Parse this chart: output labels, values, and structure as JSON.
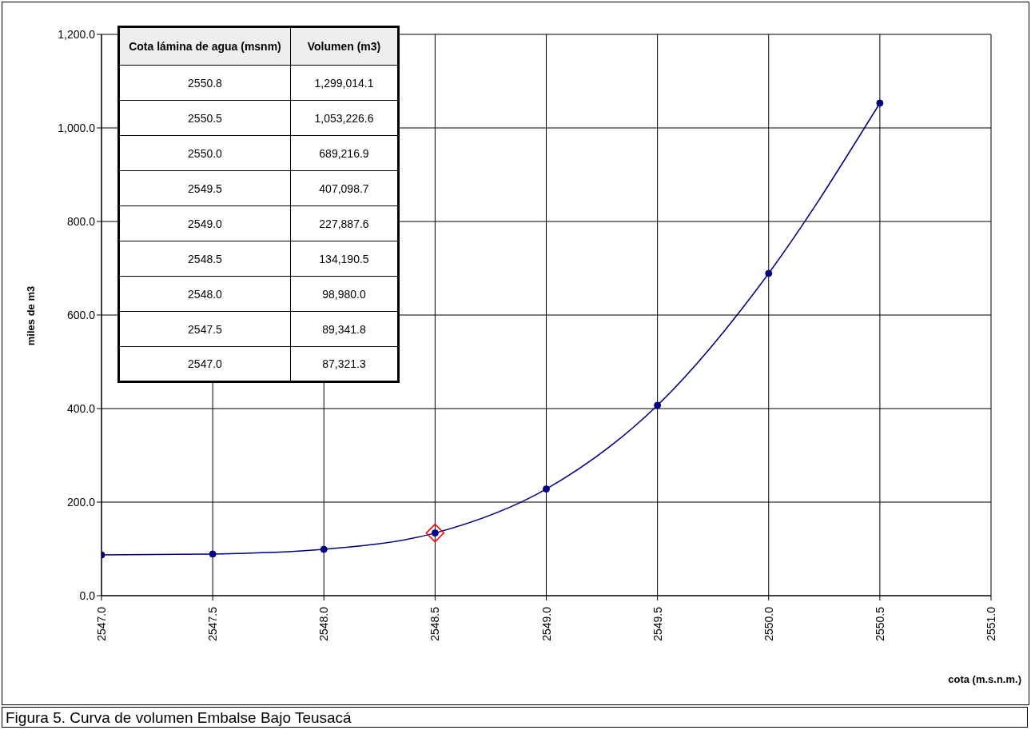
{
  "chart_data": {
    "type": "line",
    "title": "Figura 5. Curva de volumen Embalse Bajo Teusacá",
    "xlabel": "cota (m.s.n.m.)",
    "ylabel": "miles de m3",
    "x": [
      2547.0,
      2547.5,
      2548.0,
      2548.5,
      2549.0,
      2549.5,
      2550.0,
      2550.5
    ],
    "series": [
      {
        "color": "#000080",
        "marker": "circle",
        "values": [
          87,
          89,
          99,
          134,
          228,
          407,
          689,
          1053
        ]
      },
      {
        "type": "scatter",
        "color": "#ff0000",
        "marker": "diamond",
        "x": [
          2548.5
        ],
        "values": [
          134
        ]
      }
    ],
    "xlim": [
      2547,
      2551
    ],
    "xticks": [
      {
        "value": 2547,
        "label": "2547.0"
      },
      {
        "value": 2547.5,
        "label": "2547.5"
      },
      {
        "value": 2548,
        "label": "2548.0"
      },
      {
        "value": 2548.5,
        "label": "2548.5"
      },
      {
        "value": 2549,
        "label": "2549.0"
      },
      {
        "value": 2549.5,
        "label": "2549.5"
      },
      {
        "value": 2550,
        "label": "2550.0"
      },
      {
        "value": 2550.5,
        "label": "2550.5"
      },
      {
        "value": 2551,
        "label": "2551.0"
      }
    ],
    "ylim": [
      0,
      1200
    ],
    "yticks": [
      {
        "value": 0,
        "label": "0.0"
      },
      {
        "value": 200,
        "label": "200.0"
      },
      {
        "value": 400,
        "label": "400.0"
      },
      {
        "value": 600,
        "label": "600.0"
      },
      {
        "value": 800,
        "label": "800.0"
      },
      {
        "value": 1000,
        "label": "1,000.0"
      },
      {
        "value": 1200,
        "label": "1,200.0"
      }
    ],
    "grid": true,
    "annotations": [
      "Cota lámina de agua (msnm)",
      "Volumen (m3)",
      "2550.8",
      "1,299,014.1",
      "2550.5",
      "1,053,226.6",
      "2550.0",
      "689,216.9",
      "2549.5",
      "407,098.7",
      "2549.0",
      "227,887.6",
      "2548.5",
      "134,190.5",
      "2548.0",
      "98,980.0",
      "2547.5",
      "89,341.8",
      "2547.0",
      "87,321.3"
    ]
  }
}
